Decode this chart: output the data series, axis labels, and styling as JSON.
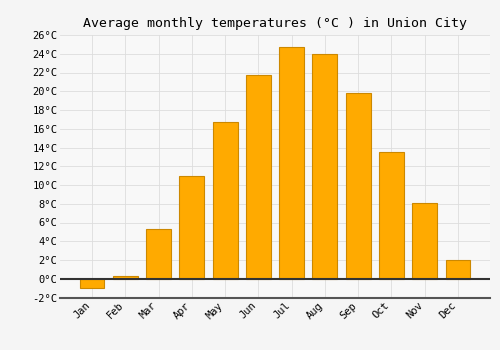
{
  "months": [
    "Jan",
    "Feb",
    "Mar",
    "Apr",
    "May",
    "Jun",
    "Jul",
    "Aug",
    "Sep",
    "Oct",
    "Nov",
    "Dec"
  ],
  "values": [
    -1.0,
    0.3,
    5.3,
    11.0,
    16.7,
    21.7,
    24.7,
    24.0,
    19.8,
    13.5,
    8.1,
    2.0
  ],
  "bar_color": "#FFAA00",
  "bar_edge_color": "#CC8800",
  "title": "Average monthly temperatures (°C ) in Union City",
  "ylim": [
    -2,
    26
  ],
  "yticks": [
    -2,
    0,
    2,
    4,
    6,
    8,
    10,
    12,
    14,
    16,
    18,
    20,
    22,
    24,
    26
  ],
  "background_color": "#f5f5f5",
  "plot_bg_color": "#f8f8f8",
  "grid_color": "#dddddd",
  "title_fontsize": 9.5,
  "tick_fontsize": 7.5,
  "bar_width": 0.75
}
